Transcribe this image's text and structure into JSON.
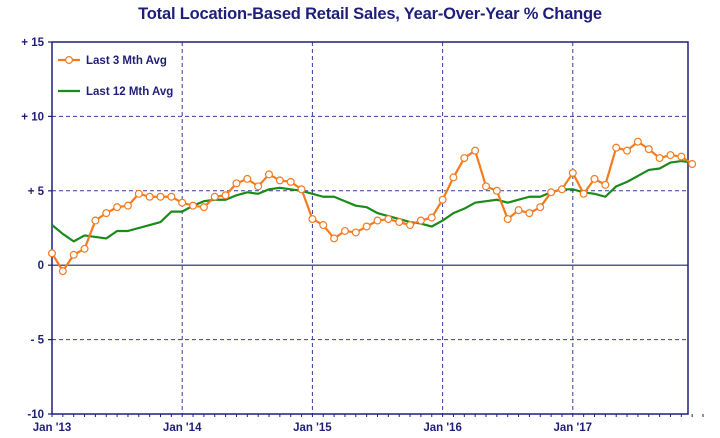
{
  "chart_data": {
    "type": "line",
    "title": "Total Location-Based Retail Sales, Year-Over-Year % Change",
    "xlabel": "",
    "ylabel": "",
    "ylim": [
      -10,
      15
    ],
    "y_ticks": [
      {
        "value": 15,
        "label": "+ 15"
      },
      {
        "value": 10,
        "label": "+ 10"
      },
      {
        "value": 5,
        "label": "+ 5"
      },
      {
        "value": 0,
        "label": "0"
      },
      {
        "value": -5,
        "label": "- 5"
      },
      {
        "value": -10,
        "label": "-10"
      }
    ],
    "x_ticks": [
      {
        "index": 0,
        "label": "Jan '13"
      },
      {
        "index": 12,
        "label": "Jan '14"
      },
      {
        "index": 24,
        "label": "Jan '15"
      },
      {
        "index": 36,
        "label": "Jan '16"
      },
      {
        "index": 48,
        "label": "Jan '17"
      }
    ],
    "x_count": 60,
    "grid": true,
    "legend_position": "top-left",
    "colors": {
      "series_3mth": "#f47b20",
      "series_12mth": "#1a8a1a",
      "frame": "#1f1f7a",
      "grid": "#3a3aa0",
      "title": "#1f1f7a"
    },
    "series": [
      {
        "name": "Last 3 Mth Avg",
        "values": [
          0.8,
          -0.4,
          0.7,
          1.1,
          3.0,
          3.5,
          3.9,
          4.0,
          4.8,
          4.6,
          4.6,
          4.6,
          4.2,
          4.0,
          3.9,
          4.6,
          4.7,
          5.5,
          5.8,
          5.3,
          6.1,
          5.7,
          5.6,
          5.1,
          3.1,
          2.7,
          1.8,
          2.3,
          2.2,
          2.6,
          3.0,
          3.1,
          2.9,
          2.7,
          3.0,
          3.2,
          4.4,
          5.9,
          7.2,
          7.7,
          5.3,
          5.0,
          3.1,
          3.7,
          3.5,
          3.9,
          4.9,
          5.1,
          6.2,
          4.8,
          5.8,
          5.4,
          7.9,
          7.7,
          8.3,
          7.8,
          7.2,
          7.4,
          7.3,
          6.8
        ]
      },
      {
        "name": "Last 12 Mth Avg",
        "values": [
          2.7,
          2.1,
          1.6,
          2.0,
          1.9,
          1.8,
          2.3,
          2.3,
          2.5,
          2.7,
          2.9,
          3.6,
          3.6,
          4.0,
          4.3,
          4.4,
          4.4,
          4.7,
          4.9,
          4.8,
          5.1,
          5.2,
          5.1,
          5.0,
          4.8,
          4.6,
          4.6,
          4.3,
          4.0,
          3.9,
          3.5,
          3.3,
          3.1,
          2.9,
          2.8,
          2.6,
          3.0,
          3.5,
          3.8,
          4.2,
          4.3,
          4.4,
          4.2,
          4.4,
          4.6,
          4.6,
          4.9,
          5.1,
          5.1,
          4.9,
          4.8,
          4.6,
          5.3,
          5.6,
          6.0,
          6.4,
          6.5,
          6.9,
          7.0,
          6.9
        ]
      }
    ]
  }
}
